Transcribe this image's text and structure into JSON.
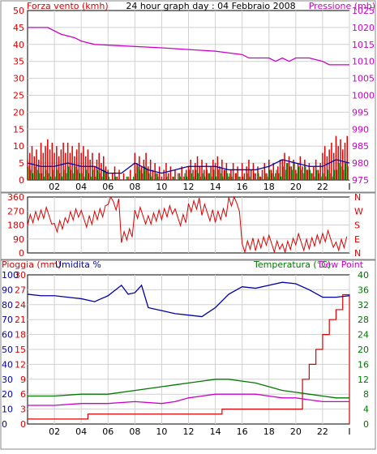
{
  "colors": {
    "panel_bg": "#ffffff",
    "frame": "#888888",
    "grid": "#d0d0d0",
    "wind": "#dd0000",
    "gust_blue": "#0000aa",
    "wind_green": "#008800",
    "pressure": "#cc00cc",
    "direction": "#dd0000",
    "rain": "#dd0000",
    "humidity": "#0000aa",
    "temperature": "#007700",
    "dewpoint": "#cc00cc"
  },
  "chart_data": [
    {
      "type": "line",
      "id": "wind_pressure",
      "title": "24 hour graph day : 04 Febbraio 2008",
      "left_label": "Forza vento (kmh)",
      "right_label": "Pressione (mb)",
      "x_ticks": [
        "02",
        "04",
        "06",
        "08",
        "10",
        "12",
        "14",
        "16",
        "18",
        "20",
        "22",
        "I"
      ],
      "y_left_ticks": [
        "50",
        "45",
        "40",
        "35",
        "30",
        "25",
        "20",
        "15",
        "10",
        "5",
        "0"
      ],
      "y_left_range": [
        0,
        50
      ],
      "y_right_ticks": [
        "1025",
        "1020",
        "1015",
        "1010",
        "1005",
        "1000",
        "995",
        "990",
        "985",
        "980",
        "975"
      ],
      "y_right_range": [
        975,
        1025
      ],
      "series": [
        {
          "name": "pressure",
          "axis": "right",
          "x": [
            0,
            1.5,
            2.5,
            3.5,
            4,
            4.5,
            5,
            10,
            14,
            16,
            16.5,
            18,
            18.5,
            19,
            19.5,
            20,
            21,
            22,
            22.5,
            24
          ],
          "values": [
            1020,
            1020,
            1018,
            1017,
            1016,
            1015.5,
            1015,
            1014,
            1013,
            1012,
            1011,
            1011,
            1010,
            1011,
            1010,
            1011,
            1011,
            1010,
            1009,
            1009
          ]
        },
        {
          "name": "wind",
          "axis": "left",
          "x": [
            0,
            1,
            2,
            3,
            4,
            5,
            6,
            7,
            8,
            9,
            10,
            11,
            12,
            13,
            14,
            15,
            16,
            17,
            18,
            19,
            20,
            21,
            22,
            23,
            24
          ],
          "values": [
            8,
            10,
            9,
            9,
            8,
            6,
            2,
            1,
            6,
            4,
            3,
            2,
            5,
            4,
            5,
            3,
            4,
            3,
            4,
            6,
            5,
            4,
            9,
            11,
            10
          ]
        },
        {
          "name": "gust",
          "axis": "left",
          "x": [
            0,
            1,
            2,
            3,
            4,
            5,
            6,
            7,
            8,
            9,
            10,
            11,
            12,
            13,
            14,
            15,
            16,
            17,
            18,
            19,
            20,
            21,
            22,
            23,
            24
          ],
          "values": [
            4,
            3,
            3,
            4,
            3,
            3,
            1,
            1,
            4,
            2,
            1,
            2,
            3,
            3,
            3,
            2,
            2,
            2,
            3,
            5,
            4,
            3,
            3,
            5,
            4
          ]
        }
      ]
    },
    {
      "type": "line",
      "id": "direction",
      "y_left_ticks": [
        "360",
        "270",
        "180",
        "90",
        "0"
      ],
      "y_left_range": [
        0,
        360
      ],
      "y_right_ticks": [
        "N",
        "W",
        "S",
        "E",
        "N"
      ],
      "series": [
        {
          "name": "direction",
          "x": [
            0,
            1,
            2,
            3,
            4,
            5,
            6,
            7,
            8,
            9,
            10,
            11,
            12,
            13,
            14,
            15,
            16,
            17,
            18,
            19,
            20,
            21,
            22,
            23,
            24
          ],
          "values": [
            230,
            240,
            190,
            230,
            220,
            250,
            330,
            120,
            240,
            240,
            250,
            230,
            300,
            260,
            250,
            320,
            60,
            50,
            60,
            40,
            70,
            80,
            90,
            70,
            80
          ]
        }
      ]
    },
    {
      "type": "line",
      "id": "rain_humidity_temp",
      "left_label_1": "Pioggia (mm)",
      "left_label_2": "Umidita %",
      "right_label_1": "Temperatura (°C)",
      "right_label_2": "Dew Point",
      "y_rain_ticks": [
        "30",
        "27",
        "24",
        "21",
        "18",
        "15",
        "12",
        "9",
        "6",
        "3",
        "0"
      ],
      "y_rain_range": [
        0,
        30
      ],
      "y_hum_ticks": [
        "100",
        "90",
        "80",
        "70",
        "60",
        "50",
        "40",
        "30",
        "20",
        "10",
        "0"
      ],
      "y_hum_range": [
        0,
        100
      ],
      "y_temp_ticks": [
        "40",
        "36",
        "32",
        "28",
        "24",
        "20",
        "16",
        "12",
        "8",
        "4",
        "0"
      ],
      "y_temp_range": [
        0,
        40
      ],
      "series": [
        {
          "name": "rain",
          "x": [
            0,
            4,
            4.5,
            14,
            14.5,
            20,
            20.5,
            21,
            21.5,
            22,
            22.5,
            23,
            23.5,
            24
          ],
          "values": [
            1,
            1,
            2,
            2,
            3,
            3,
            9,
            12,
            15,
            18,
            21,
            23,
            26,
            26
          ]
        },
        {
          "name": "humidity",
          "x": [
            0,
            1,
            2,
            3,
            4,
            5,
            6,
            7,
            7.5,
            8,
            8.5,
            9,
            10,
            11,
            12,
            13,
            14,
            15,
            16,
            17,
            18,
            19,
            20,
            21,
            22,
            23,
            24
          ],
          "values": [
            87,
            86,
            86,
            85,
            84,
            82,
            86,
            93,
            87,
            88,
            93,
            78,
            76,
            74,
            73,
            72,
            78,
            87,
            92,
            91,
            93,
            95,
            94,
            90,
            85,
            85,
            86
          ]
        },
        {
          "name": "temperature",
          "x": [
            0,
            2,
            4,
            6,
            8,
            10,
            11,
            12,
            13,
            14,
            15,
            16,
            17,
            18,
            19,
            20,
            21,
            22,
            23,
            24
          ],
          "values": [
            7.5,
            7.5,
            8,
            8,
            9,
            10,
            10.5,
            11,
            11.5,
            12,
            12,
            11.5,
            11,
            10,
            9,
            8.5,
            8,
            7.5,
            7,
            7
          ]
        },
        {
          "name": "dewpoint",
          "x": [
            0,
            2,
            4,
            6,
            8,
            10,
            11,
            12,
            13,
            14,
            15,
            16,
            17,
            18,
            19,
            20,
            21,
            22,
            23,
            24
          ],
          "values": [
            5,
            5,
            5.5,
            5.5,
            6,
            5.5,
            6,
            7,
            7.5,
            8,
            8,
            8,
            8,
            7.5,
            7,
            7,
            6.5,
            6,
            6,
            6
          ]
        }
      ]
    }
  ]
}
